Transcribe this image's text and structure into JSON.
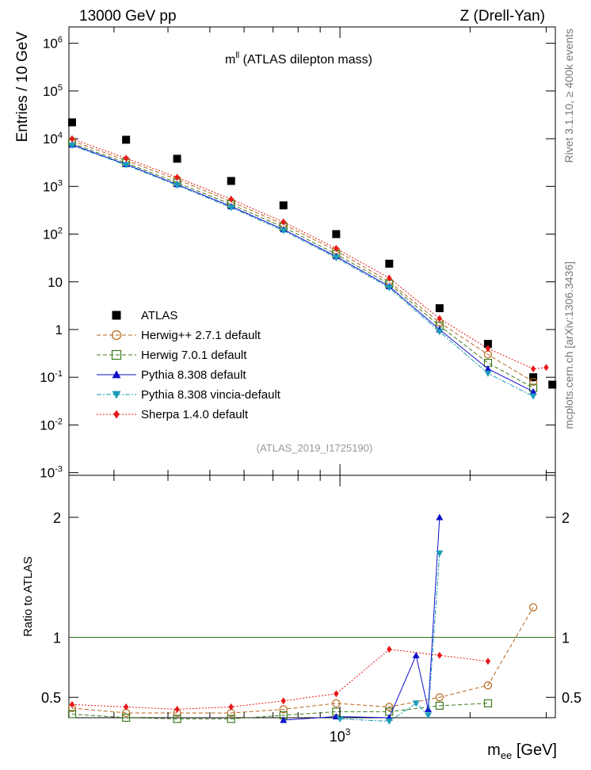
{
  "header": {
    "left": "13000 GeV pp",
    "right": "Z (Drell-Yan)"
  },
  "side_labels": {
    "rivet": "Rivet 3.1.10, ≥ 400k events",
    "mcplots": "mcplots.cern.ch [arXiv:1306.3436]"
  },
  "chart_data": [
    {
      "type": "scatter",
      "panel": "main",
      "title_main": "m",
      "title_sup": "ll",
      "title_rest": " (ATLAS dilepton mass)",
      "ylabel": "Entries / 10 GeV",
      "xscale": "log",
      "yscale": "log",
      "xlim": [
        236,
        3150
      ],
      "ylim": [
        0.00088,
        2200000
      ],
      "y_ticks": [
        "10^6",
        "10^5",
        "10^4",
        "10^3",
        "10^2",
        "10",
        "1",
        "10^-1",
        "10^-2",
        "10^-3"
      ],
      "analysis_id": "(ATLAS_2019_I1725190)",
      "legend_position": "lower-left",
      "series": [
        {
          "name": "ATLAS",
          "marker": "square-filled",
          "color": "#000000",
          "x": [
            240,
            320,
            420,
            560,
            740,
            980,
            1300,
            1700,
            2200,
            2800,
            3100
          ],
          "values": [
            22000,
            9500,
            3800,
            1300,
            400,
            100,
            24,
            2.8,
            0.5,
            0.1,
            0.07
          ]
        },
        {
          "name": "Herwig++ 2.7.1 default",
          "marker": "circle-open",
          "color": "#b8651b",
          "line": "dashed",
          "x": [
            240,
            320,
            420,
            560,
            740,
            980,
            1300,
            1700,
            2200,
            2800
          ],
          "values": [
            9000,
            3500,
            1400,
            480,
            160,
            45,
            10,
            1.4,
            0.3,
            0.08
          ]
        },
        {
          "name": "Herwig 7.0.1 default",
          "marker": "square-open",
          "color": "#3d7a1e",
          "line": "dashed",
          "x": [
            240,
            320,
            420,
            560,
            740,
            980,
            1300,
            1700,
            2200,
            2800
          ],
          "values": [
            8000,
            3100,
            1200,
            420,
            140,
            38,
            9,
            1.2,
            0.2,
            0.06
          ]
        },
        {
          "name": "Pythia 8.308 default",
          "marker": "triangle-up",
          "color": "#1010cc",
          "line": "solid",
          "x": [
            240,
            320,
            420,
            560,
            740,
            980,
            1300,
            1700,
            2200,
            2800
          ],
          "values": [
            7500,
            2900,
            1100,
            380,
            125,
            34,
            8,
            1.0,
            0.15,
            0.05
          ]
        },
        {
          "name": "Pythia 8.308 vincia-default",
          "marker": "triangle-down",
          "color": "#1a9db8",
          "line": "dashdot",
          "x": [
            240,
            320,
            420,
            560,
            740,
            980,
            1300,
            1700,
            2200,
            2800
          ],
          "values": [
            7200,
            2800,
            1050,
            360,
            118,
            32,
            7.5,
            0.9,
            0.12,
            0.04
          ]
        },
        {
          "name": "Sherpa 1.4.0 default",
          "marker": "diamond",
          "color": "#e8181a",
          "line": "dotted",
          "x": [
            240,
            320,
            420,
            560,
            740,
            980,
            1300,
            1700,
            2200,
            2800,
            3000
          ],
          "values": [
            10000,
            3900,
            1550,
            540,
            180,
            50,
            12,
            1.7,
            0.4,
            0.15,
            0.16
          ]
        }
      ]
    },
    {
      "type": "scatter",
      "panel": "ratio",
      "ylabel": "Ratio to ATLAS",
      "xlabel_main": "m",
      "xlabel_sub": "ee",
      "xlabel_unit": " [GeV]",
      "xscale": "log",
      "xlim": [
        236,
        3150
      ],
      "ylim": [
        0.33,
        2.35
      ],
      "y_ticks": [
        "0.5",
        "1",
        "2"
      ],
      "x_ticks": [
        "10^3"
      ],
      "reference_line": 1,
      "series": [
        {
          "name": "Herwig++ 2.7.1 default",
          "color": "#b8651b",
          "x": [
            240,
            320,
            420,
            560,
            740,
            980,
            1300,
            1700,
            2200,
            2800
          ],
          "values": [
            0.41,
            0.37,
            0.37,
            0.37,
            0.4,
            0.45,
            0.42,
            0.5,
            0.6,
            1.25
          ]
        },
        {
          "name": "Herwig 7.0.1 default",
          "color": "#3d7a1e",
          "x": [
            240,
            320,
            420,
            560,
            740,
            980,
            1300,
            1700,
            2200
          ],
          "values": [
            0.36,
            0.33,
            0.32,
            0.32,
            0.35,
            0.38,
            0.38,
            0.43,
            0.45
          ]
        },
        {
          "name": "Pythia 8.308 default",
          "color": "#1010cc",
          "x": [
            740,
            980,
            1300,
            1500,
            1600,
            1700
          ],
          "values": [
            0.31,
            0.34,
            0.33,
            0.85,
            0.4,
            2.0
          ]
        },
        {
          "name": "Pythia 8.308 vincia-default",
          "color": "#1a9db8",
          "x": [
            1000,
            1300,
            1500,
            1600,
            1700
          ],
          "values": [
            0.32,
            0.3,
            0.45,
            0.35,
            1.7
          ]
        },
        {
          "name": "Sherpa 1.4.0 default",
          "color": "#e8181a",
          "x": [
            240,
            320,
            420,
            560,
            740,
            980,
            1300,
            1700,
            2200
          ],
          "values": [
            0.44,
            0.42,
            0.4,
            0.42,
            0.47,
            0.53,
            0.9,
            0.85,
            0.8
          ]
        }
      ]
    }
  ]
}
